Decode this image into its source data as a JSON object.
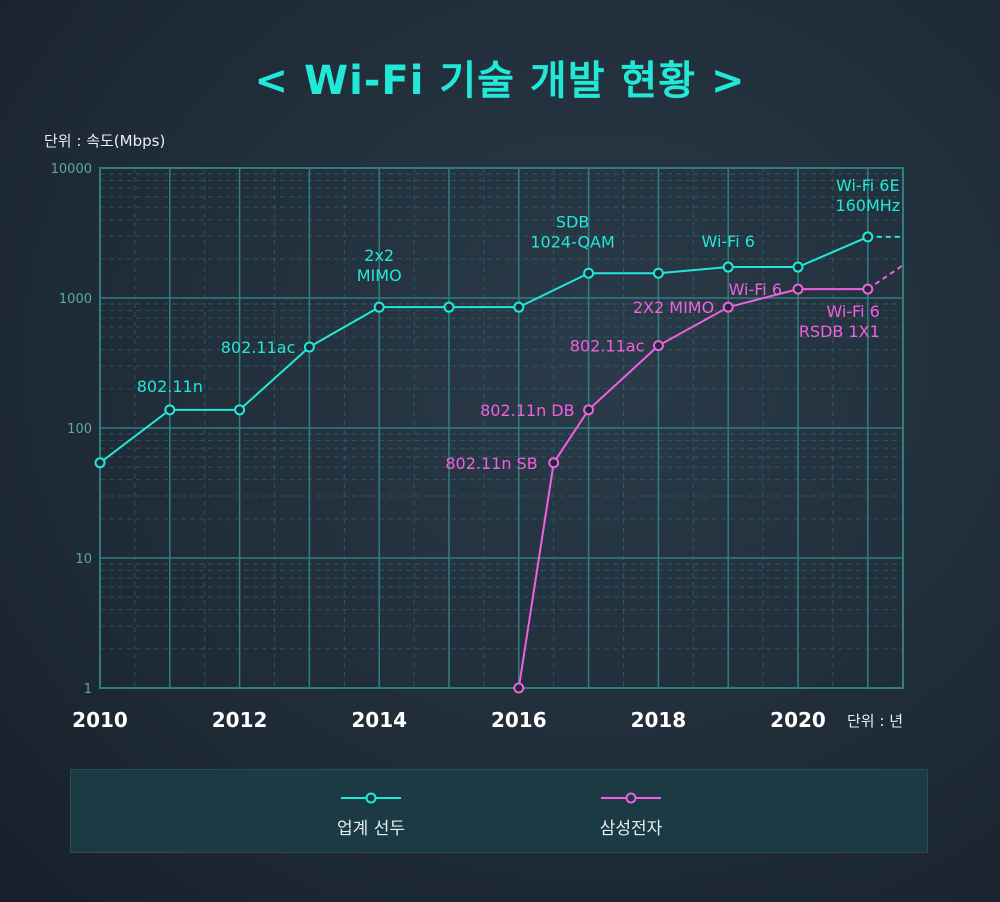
{
  "title": "< Wi-Fi 기술 개발 현황 >",
  "y_unit_label": "단위 : 속도(Mbps)",
  "x_unit_label": "단위 : 년",
  "colors": {
    "industry": "#22e8d8",
    "samsung": "#f060e0",
    "grid": "#2f7f80",
    "tick": "#3f8f8f"
  },
  "chart_data": {
    "type": "line",
    "y_scale": "log",
    "ylim": [
      1,
      10000
    ],
    "xlim": [
      2010,
      2021.5
    ],
    "y_ticks": [
      1,
      10,
      100,
      1000,
      10000
    ],
    "x_ticks": [
      2010,
      2012,
      2014,
      2016,
      2018,
      2020
    ],
    "series": [
      {
        "name": "업계 선두",
        "color": "#22e8d8",
        "points": [
          {
            "x": 2010,
            "y": 54
          },
          {
            "x": 2011,
            "y": 138,
            "label": "802.11n"
          },
          {
            "x": 2012,
            "y": 138
          },
          {
            "x": 2013,
            "y": 420,
            "label": "802.11ac"
          },
          {
            "x": 2014,
            "y": 850,
            "label": "2x2\nMIMO"
          },
          {
            "x": 2015,
            "y": 850
          },
          {
            "x": 2016,
            "y": 850
          },
          {
            "x": 2017,
            "y": 1550,
            "label": "SDB\n1024-QAM"
          },
          {
            "x": 2018,
            "y": 1550
          },
          {
            "x": 2019,
            "y": 1730,
            "label": "Wi-Fi 6"
          },
          {
            "x": 2020,
            "y": 1730
          },
          {
            "x": 2021,
            "y": 2950,
            "label": "Wi-Fi 6E\n160MHz"
          }
        ],
        "projection": {
          "x": 2021.5,
          "y": 2950
        }
      },
      {
        "name": "삼성전자",
        "color": "#f060e0",
        "points": [
          {
            "x": 2016,
            "y": 1
          },
          {
            "x": 2016.5,
            "y": 54,
            "label": "802.11n SB"
          },
          {
            "x": 2017,
            "y": 138,
            "label": "802.11n DB"
          },
          {
            "x": 2018,
            "y": 430,
            "label": "802.11ac"
          },
          {
            "x": 2019,
            "y": 850,
            "label": "2X2 MIMO"
          },
          {
            "x": 2020,
            "y": 1170,
            "label": "Wi-Fi 6"
          },
          {
            "x": 2021,
            "y": 1170,
            "label": "Wi-Fi 6\nRSDB 1X1"
          }
        ],
        "projection": {
          "x": 2021.5,
          "y": 1780
        }
      }
    ]
  },
  "legend": {
    "industry": "업계 선두",
    "samsung": "삼성전자"
  }
}
